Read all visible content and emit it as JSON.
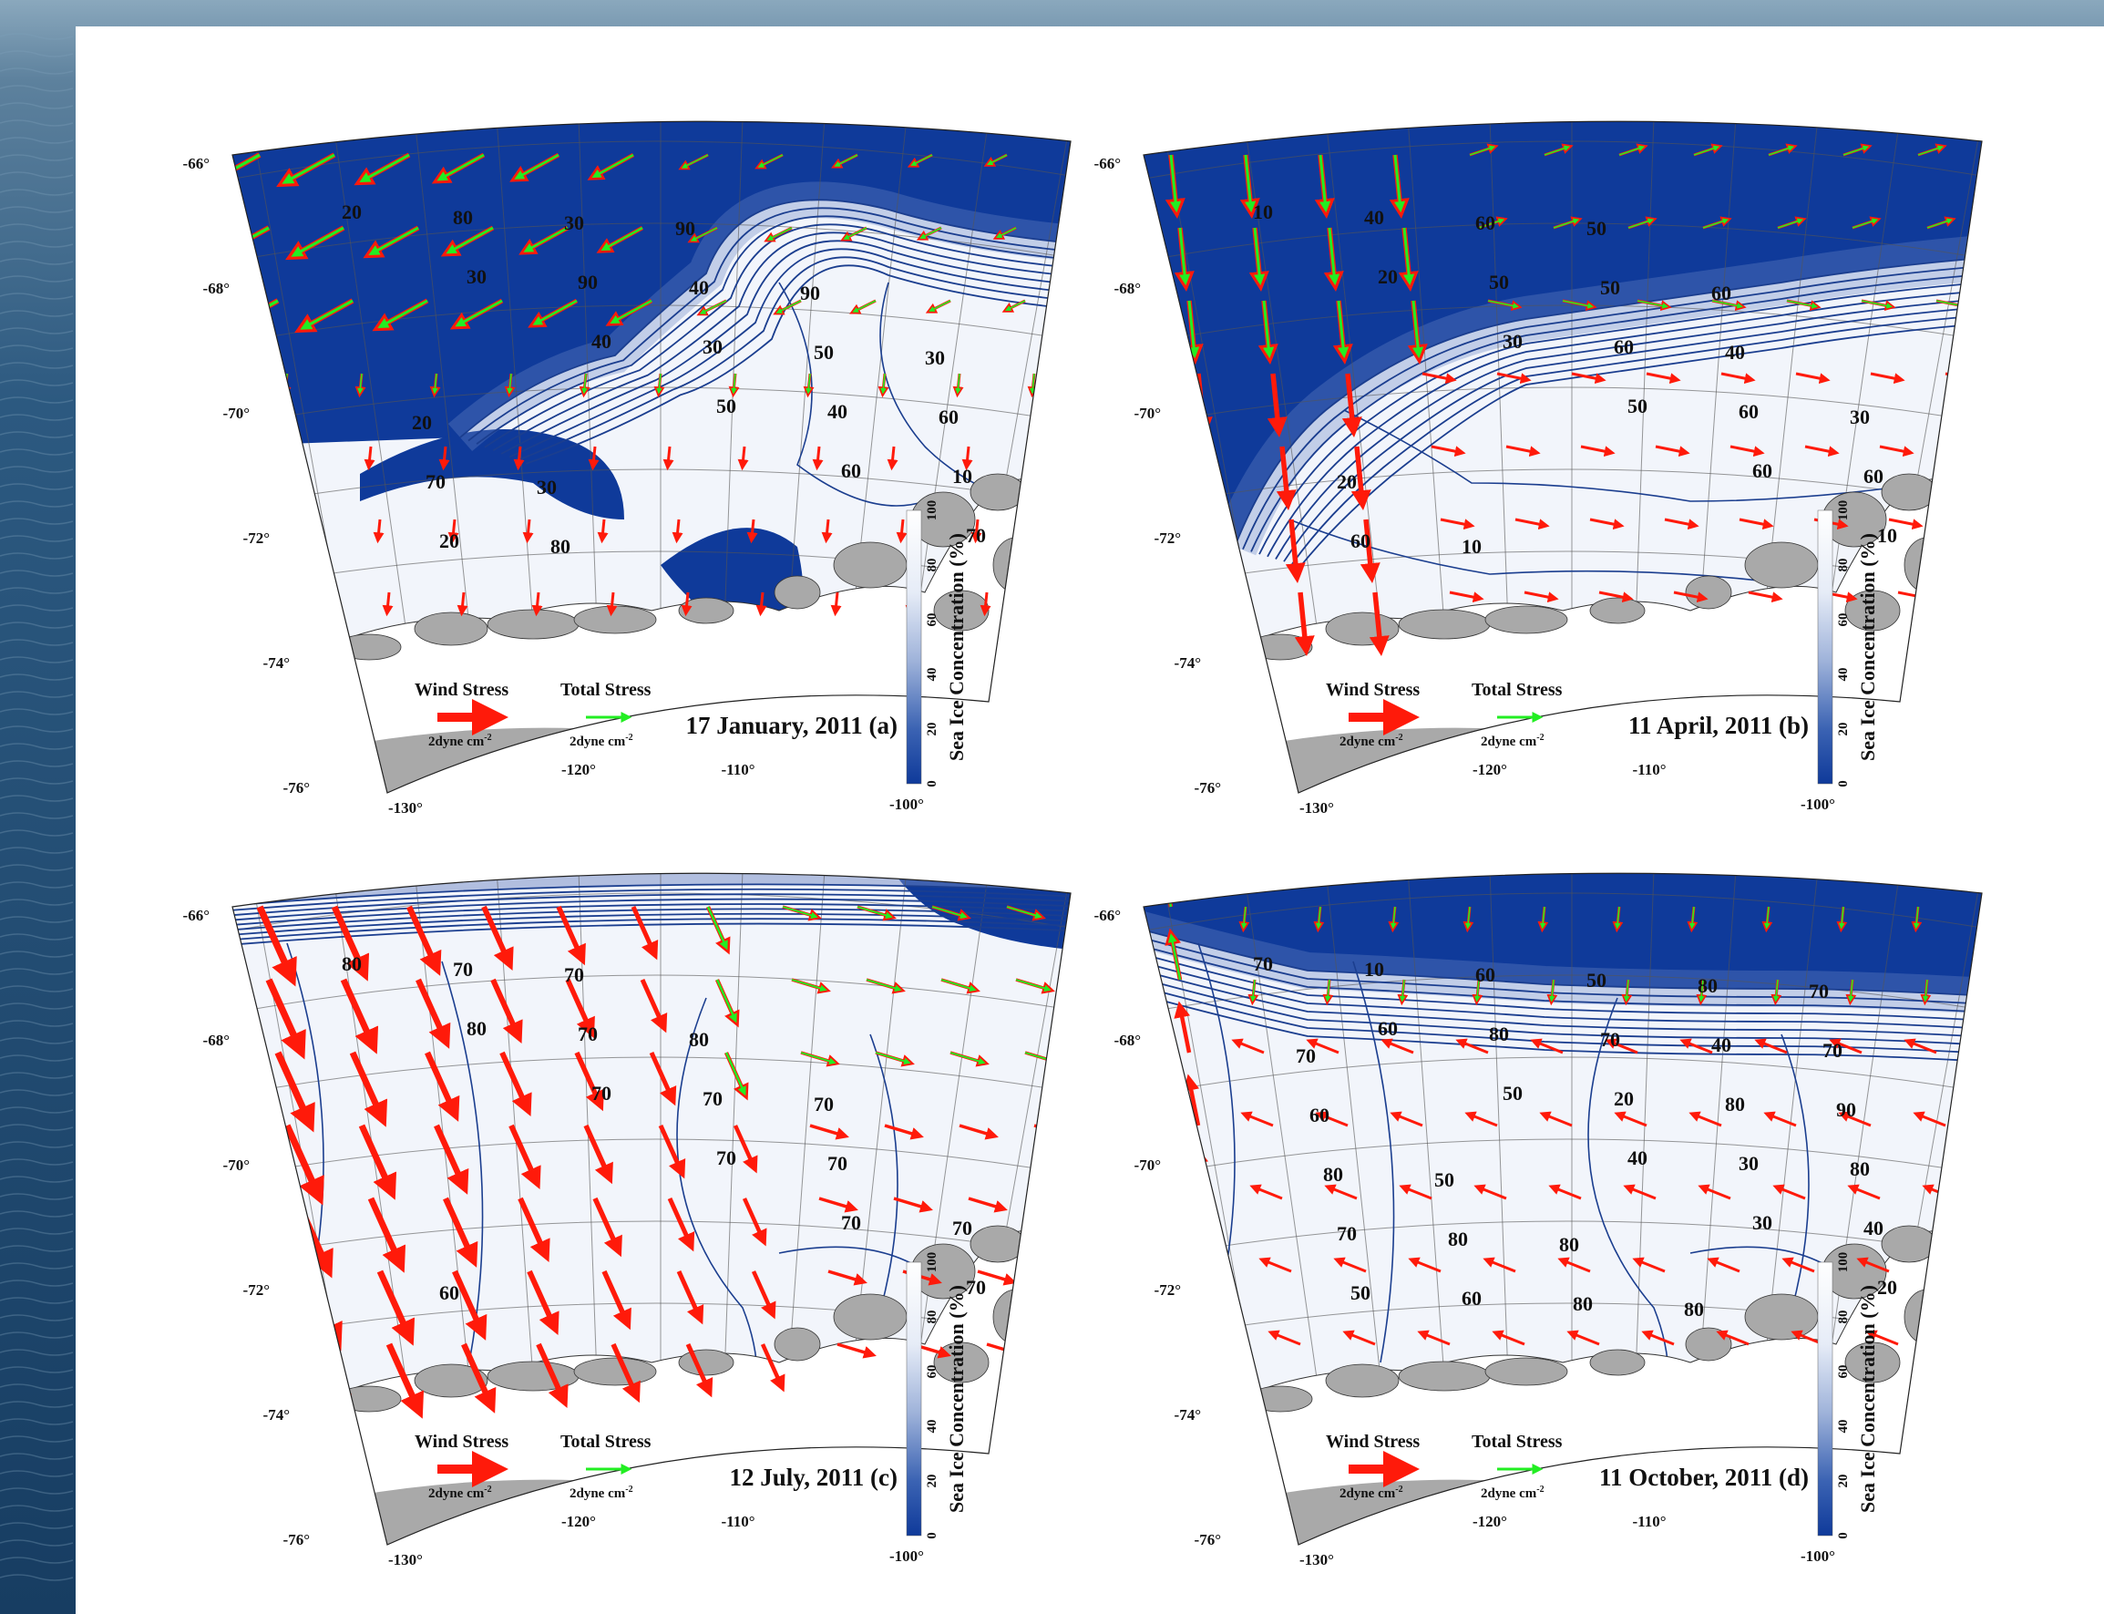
{
  "panels": [
    {
      "id": "a",
      "date_label": "17 January, 2011 (a)",
      "lat_ticks": [
        "-66°",
        "-68°",
        "-70°",
        "-72°",
        "-74°",
        "-76°"
      ],
      "lon_ticks": [
        "-130°",
        "-120°",
        "-110°",
        "-100°"
      ],
      "legend": {
        "wind": "Wind Stress",
        "total": "Total Stress",
        "scale": "2dyne cm",
        "scale_exp": "-2"
      },
      "colorbar": {
        "title": "Sea Ice Concentration (%)",
        "ticks": [
          "0",
          "20",
          "40",
          "60",
          "80",
          "100"
        ]
      },
      "contour_labels": [
        "20",
        "30",
        "40",
        "50",
        "60",
        "70",
        "80",
        "90",
        "30",
        "40",
        "10",
        "20",
        "30",
        "40",
        "50",
        "60",
        "70",
        "80",
        "90",
        "90",
        "30",
        "20",
        "30"
      ],
      "ice_edge": "north",
      "fill": [
        0.2,
        0.55
      ]
    },
    {
      "id": "b",
      "date_label": "11 April, 2011 (b)",
      "lat_ticks": [
        "-66°",
        "-68°",
        "-70°",
        "-72°",
        "-74°",
        "-76°"
      ],
      "lon_ticks": [
        "-130°",
        "-120°",
        "-110°",
        "-100°"
      ],
      "legend": {
        "wind": "Wind Stress",
        "total": "Total Stress",
        "scale": "2dyne cm",
        "scale_exp": "-2"
      },
      "colorbar": {
        "title": "Sea Ice Concentration (%)",
        "ticks": [
          "0",
          "20",
          "40",
          "60",
          "80",
          "100"
        ]
      },
      "contour_labels": [
        "10",
        "20",
        "30",
        "50",
        "60",
        "10",
        "40",
        "50",
        "60",
        "60",
        "60",
        "60",
        "60",
        "50",
        "40",
        "30",
        "20",
        "10",
        "50",
        "60"
      ],
      "ice_edge": "north",
      "fill": [
        0.35,
        0.5
      ]
    },
    {
      "id": "c",
      "date_label": "12 July, 2011 (c)",
      "lat_ticks": [
        "-66°",
        "-68°",
        "-70°",
        "-72°",
        "-74°",
        "-76°"
      ],
      "lon_ticks": [
        "-130°",
        "-120°",
        "-110°",
        "-100°"
      ],
      "legend": {
        "wind": "Wind Stress",
        "total": "Total Stress",
        "scale": "2dyne cm",
        "scale_exp": "-2"
      },
      "colorbar": {
        "title": "Sea Ice Concentration (%)",
        "ticks": [
          "0",
          "20",
          "40",
          "60",
          "80",
          "100"
        ]
      },
      "contour_labels": [
        "80",
        "80",
        "70",
        "70",
        "70",
        "70",
        "70",
        "70",
        "70",
        "70",
        "70",
        "60",
        "70",
        "80",
        "70"
      ],
      "ice_edge": "none",
      "fill": [
        0.04,
        0.1
      ]
    },
    {
      "id": "d",
      "date_label": "11 October, 2011 (d)",
      "lat_ticks": [
        "-66°",
        "-68°",
        "-70°",
        "-72°",
        "-74°",
        "-76°"
      ],
      "lon_ticks": [
        "-130°",
        "-120°",
        "-110°",
        "-100°"
      ],
      "legend": {
        "wind": "Wind Stress",
        "total": "Total Stress",
        "scale": "2dyne cm",
        "scale_exp": "-2"
      },
      "colorbar": {
        "title": "Sea Ice Concentration (%)",
        "ticks": [
          "0",
          "20",
          "40",
          "60",
          "80",
          "100"
        ]
      },
      "contour_labels": [
        "70",
        "60",
        "50",
        "40",
        "30",
        "20",
        "10",
        "80",
        "20",
        "30",
        "40",
        "50",
        "60",
        "70",
        "80",
        "80",
        "70",
        "60",
        "50",
        "40",
        "90",
        "80",
        "80",
        "80",
        "80",
        "70",
        "60",
        "50",
        "80",
        "80",
        "70",
        "70"
      ],
      "ice_edge": "north-thin",
      "fill": [
        0.18,
        0.18
      ]
    }
  ],
  "colors": {
    "open_water": "#0f3a9a",
    "ice": "#ffffff",
    "contour": "#1b3e8f",
    "land": "#a9a9a9",
    "wind_arrow": "#ff1a0a",
    "total_arrow": "#22ee22",
    "paper": "#ffffff"
  }
}
